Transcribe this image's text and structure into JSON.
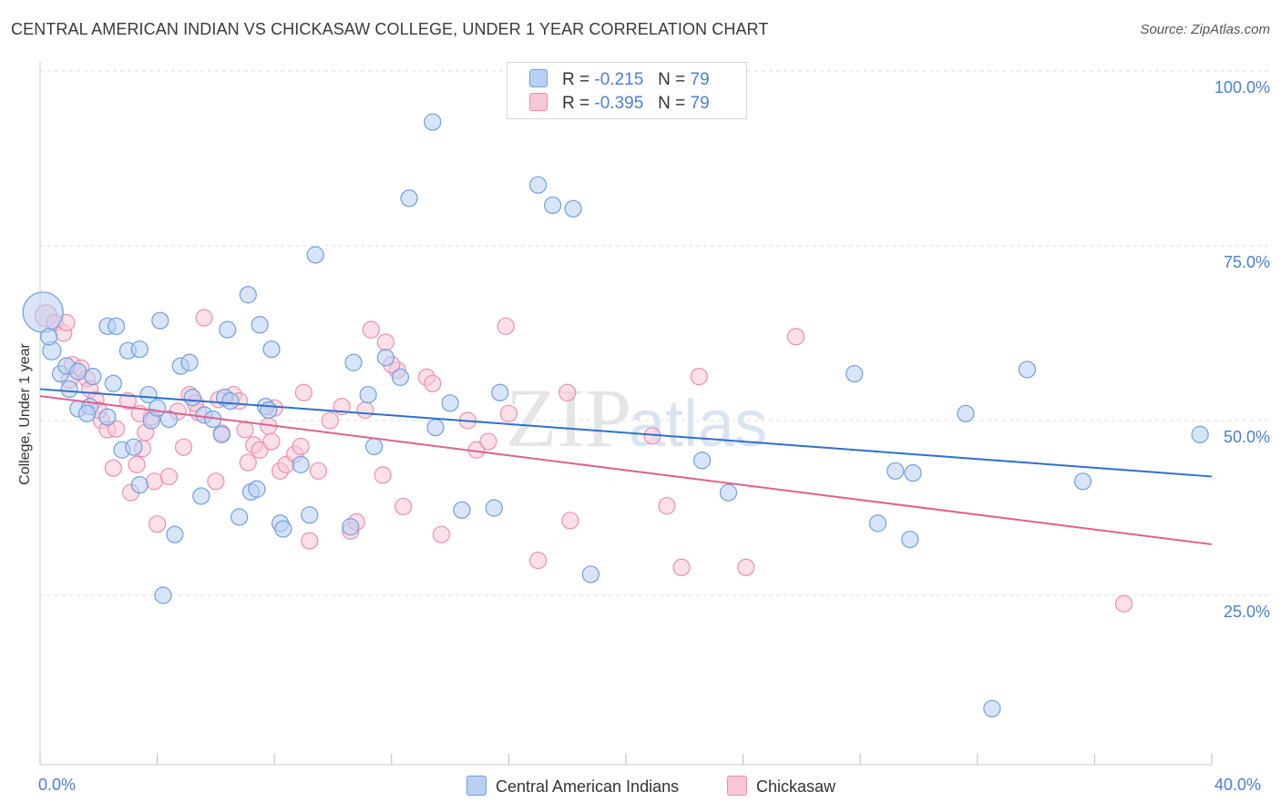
{
  "header": {
    "title": "CENTRAL AMERICAN INDIAN VS CHICKASAW COLLEGE, UNDER 1 YEAR CORRELATION CHART",
    "source": "Source: ZipAtlas.com"
  },
  "stats": [
    {
      "r_label": "R =",
      "r_value": "-0.215",
      "n_label": "N =",
      "n_value": "79"
    },
    {
      "r_label": "R =",
      "r_value": "-0.395",
      "n_label": "N =",
      "n_value": "79"
    }
  ],
  "legend": {
    "series1": "Central American Indians",
    "series2": "Chickasaw"
  },
  "colors": {
    "blue_fill": "#b8d0f2",
    "blue_stroke": "#6f9fe0",
    "blue_line": "#2f6fcf",
    "pink_fill": "#f9c6d6",
    "pink_stroke": "#ec8fb0",
    "pink_line": "#e0608f",
    "tick_text": "#4a7fd4",
    "grid": "#dddddd"
  },
  "watermark": {
    "zip": "ZIP",
    "atlas": "atlas"
  },
  "chart_data": {
    "type": "scatter",
    "title": "CENTRAL AMERICAN INDIAN VS CHICKASAW COLLEGE, UNDER 1 YEAR CORRELATION CHART",
    "xlabel": "",
    "ylabel": "College, Under 1 year",
    "xlim": [
      0,
      40
    ],
    "ylim": [
      0,
      105
    ],
    "x_tick_labels": [
      "0.0%",
      "40.0%"
    ],
    "y_ticks": [
      {
        "value": 100,
        "label": "100.0%"
      },
      {
        "value": 75,
        "label": "75.0%"
      },
      {
        "value": 50,
        "label": "50.0%"
      },
      {
        "value": 25,
        "label": "25.0%"
      }
    ],
    "grid": true,
    "legend_position": "bottom",
    "series": [
      {
        "name": "Central American Indians",
        "r": -0.215,
        "n": 79,
        "trend": {
          "x0": 0,
          "y0": 54.5,
          "x1": 40,
          "y1": 42.0
        },
        "points": [
          [
            0.1,
            65.5,
            22
          ],
          [
            0.4,
            60,
            10
          ],
          [
            0.7,
            56.7,
            9
          ],
          [
            0.9,
            57.8,
            9
          ],
          [
            1.0,
            54.5,
            9
          ],
          [
            1.3,
            51.7,
            9
          ],
          [
            1.3,
            57.0,
            9
          ],
          [
            1.7,
            52.0,
            9
          ],
          [
            1.8,
            56.3,
            9
          ],
          [
            2.3,
            50.5,
            9
          ],
          [
            2.5,
            55.3,
            9
          ],
          [
            2.3,
            63.5,
            9
          ],
          [
            2.6,
            63.5,
            9
          ],
          [
            2.8,
            45.8,
            9
          ],
          [
            3.0,
            60.0,
            9
          ],
          [
            3.2,
            46.2,
            9
          ],
          [
            3.4,
            60.2,
            9
          ],
          [
            3.4,
            40.8,
            9
          ],
          [
            3.7,
            53.7,
            9
          ],
          [
            3.8,
            50.0,
            9
          ],
          [
            4.0,
            51.8,
            9
          ],
          [
            4.1,
            64.3,
            9
          ],
          [
            4.2,
            25.0,
            9
          ],
          [
            4.4,
            50.2,
            9
          ],
          [
            4.6,
            33.7,
            9
          ],
          [
            4.8,
            57.8,
            9
          ],
          [
            5.1,
            58.3,
            9
          ],
          [
            5.2,
            53.3,
            9
          ],
          [
            5.5,
            39.2,
            9
          ],
          [
            5.6,
            50.8,
            9
          ],
          [
            5.9,
            50.2,
            9
          ],
          [
            6.2,
            48.0,
            9
          ],
          [
            6.3,
            53.3,
            9
          ],
          [
            6.4,
            63.0,
            9
          ],
          [
            6.5,
            52.8,
            9
          ],
          [
            6.8,
            36.2,
            9
          ],
          [
            7.1,
            68.0,
            9
          ],
          [
            7.2,
            39.8,
            9
          ],
          [
            7.4,
            40.2,
            9
          ],
          [
            7.5,
            63.7,
            9
          ],
          [
            7.7,
            52.0,
            9
          ],
          [
            7.9,
            60.2,
            9
          ],
          [
            8.2,
            35.3,
            9
          ],
          [
            8.3,
            34.5,
            9
          ],
          [
            8.9,
            43.7,
            9
          ],
          [
            9.2,
            36.5,
            9
          ],
          [
            9.4,
            73.7,
            9
          ],
          [
            10.6,
            34.8,
            9
          ],
          [
            10.7,
            58.3,
            9
          ],
          [
            11.2,
            53.7,
            9
          ],
          [
            11.4,
            46.3,
            9
          ],
          [
            12.3,
            56.2,
            9
          ],
          [
            12.6,
            81.8,
            9
          ],
          [
            13.4,
            92.7,
            9
          ],
          [
            13.5,
            49.0,
            9
          ],
          [
            14.4,
            37.2,
            9
          ],
          [
            15.5,
            37.5,
            9
          ],
          [
            15.7,
            54.0,
            9
          ],
          [
            17.0,
            83.7,
            9
          ],
          [
            17.5,
            80.8,
            9
          ],
          [
            18.2,
            80.3,
            9
          ],
          [
            18.8,
            28.0,
            9
          ],
          [
            22.6,
            44.3,
            9
          ],
          [
            23.5,
            39.7,
            9
          ],
          [
            27.8,
            56.7,
            9
          ],
          [
            28.6,
            35.3,
            9
          ],
          [
            29.2,
            42.8,
            9
          ],
          [
            29.8,
            42.5,
            9
          ],
          [
            29.7,
            33.0,
            9
          ],
          [
            31.6,
            51.0,
            9
          ],
          [
            32.5,
            8.8,
            9
          ],
          [
            33.7,
            57.3,
            9
          ],
          [
            35.6,
            41.3,
            9
          ],
          [
            39.6,
            48.0,
            9
          ],
          [
            0.3,
            62.0,
            9
          ],
          [
            1.6,
            51.0,
            9
          ],
          [
            7.8,
            51.5,
            9
          ],
          [
            11.8,
            59.0,
            9
          ],
          [
            14.0,
            52.5,
            9
          ]
        ]
      },
      {
        "name": "Chickasaw",
        "r": -0.395,
        "n": 79,
        "trend": {
          "x0": 0,
          "y0": 53.5,
          "x1": 40,
          "y1": 32.3
        },
        "points": [
          [
            0.2,
            65.0,
            12
          ],
          [
            0.5,
            64.0,
            9
          ],
          [
            0.8,
            62.5,
            9
          ],
          [
            0.9,
            64.0,
            9
          ],
          [
            1.1,
            58.0,
            9
          ],
          [
            1.4,
            57.5,
            9
          ],
          [
            1.6,
            56.0,
            9
          ],
          [
            1.7,
            54.5,
            9
          ],
          [
            1.9,
            53.0,
            9
          ],
          [
            2.1,
            50.0,
            9
          ],
          [
            2.3,
            48.7,
            9
          ],
          [
            2.5,
            43.2,
            9
          ],
          [
            2.6,
            48.8,
            9
          ],
          [
            3.0,
            52.8,
            9
          ],
          [
            3.1,
            39.7,
            9
          ],
          [
            3.3,
            43.7,
            9
          ],
          [
            3.5,
            46.0,
            9
          ],
          [
            3.6,
            48.3,
            9
          ],
          [
            3.8,
            50.5,
            9
          ],
          [
            3.9,
            41.3,
            9
          ],
          [
            4.0,
            35.2,
            9
          ],
          [
            4.4,
            42.0,
            9
          ],
          [
            4.7,
            51.3,
            9
          ],
          [
            4.9,
            46.2,
            9
          ],
          [
            5.1,
            53.7,
            9
          ],
          [
            5.4,
            51.2,
            9
          ],
          [
            5.6,
            64.7,
            9
          ],
          [
            6.0,
            41.3,
            9
          ],
          [
            6.1,
            53.0,
            9
          ],
          [
            6.2,
            48.2,
            9
          ],
          [
            6.6,
            53.7,
            9
          ],
          [
            7.0,
            48.7,
            9
          ],
          [
            7.1,
            44.0,
            9
          ],
          [
            7.3,
            46.5,
            9
          ],
          [
            7.5,
            45.8,
            9
          ],
          [
            7.8,
            49.2,
            9
          ],
          [
            8.0,
            51.8,
            9
          ],
          [
            8.2,
            42.8,
            9
          ],
          [
            8.4,
            43.7,
            9
          ],
          [
            8.7,
            45.2,
            9
          ],
          [
            8.9,
            46.3,
            9
          ],
          [
            9.0,
            54.0,
            9
          ],
          [
            9.2,
            32.8,
            9
          ],
          [
            9.5,
            42.8,
            9
          ],
          [
            9.9,
            50.0,
            9
          ],
          [
            10.6,
            34.2,
            9
          ],
          [
            10.8,
            35.5,
            9
          ],
          [
            11.1,
            51.5,
            9
          ],
          [
            11.3,
            63.0,
            9
          ],
          [
            11.7,
            42.2,
            9
          ],
          [
            11.8,
            61.2,
            9
          ],
          [
            12.2,
            57.2,
            9
          ],
          [
            12.4,
            37.7,
            9
          ],
          [
            13.2,
            56.2,
            9
          ],
          [
            13.4,
            55.3,
            9
          ],
          [
            13.7,
            33.7,
            9
          ],
          [
            14.6,
            50.0,
            9
          ],
          [
            14.9,
            45.8,
            9
          ],
          [
            15.3,
            47.0,
            9
          ],
          [
            15.9,
            63.5,
            9
          ],
          [
            16.0,
            51.0,
            9
          ],
          [
            17.0,
            30.0,
            9
          ],
          [
            18.1,
            35.7,
            9
          ],
          [
            18.0,
            54.0,
            9
          ],
          [
            20.9,
            47.8,
            9
          ],
          [
            21.4,
            37.8,
            9
          ],
          [
            21.9,
            29.0,
            9
          ],
          [
            22.5,
            56.3,
            9
          ],
          [
            24.1,
            29.0,
            9
          ],
          [
            25.8,
            62.0,
            9
          ],
          [
            37.0,
            23.8,
            9
          ],
          [
            1.0,
            55.8,
            9
          ],
          [
            2.0,
            51.5,
            9
          ],
          [
            5.3,
            52.5,
            9
          ],
          [
            6.8,
            52.8,
            9
          ],
          [
            7.9,
            47.0,
            9
          ],
          [
            10.3,
            52.0,
            9
          ],
          [
            12.0,
            58.0,
            9
          ],
          [
            3.4,
            51.0,
            9
          ]
        ]
      }
    ]
  }
}
